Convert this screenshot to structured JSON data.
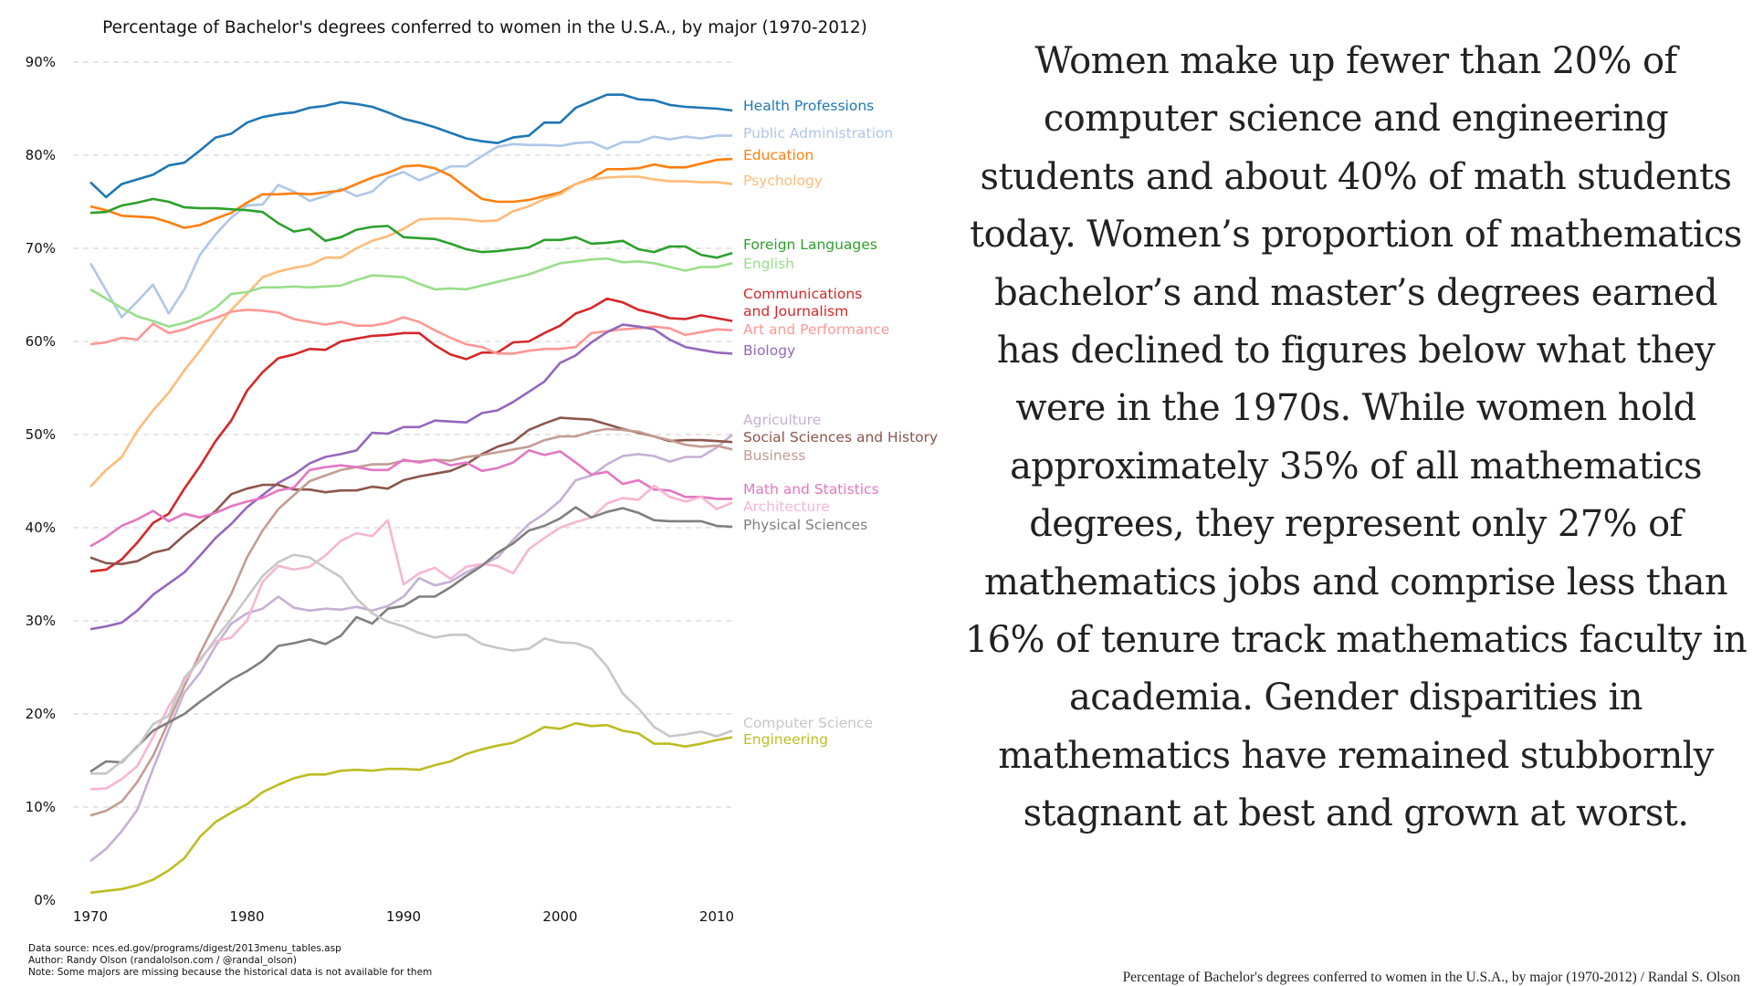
{
  "essay": {
    "text": "Women make up fewer than 20% of computer science and engineering students and about 40% of math students today. Women’s proportion of mathematics bachelor’s and master’s degrees earned has declined to figures below what they were in the 1970s. While women hold approximately 35% of all mathematics degrees, they represent only 27% of mathematics jobs and comprise less than 16% of tenure track mathematics faculty in academia. Gender disparities in mathematics have remained stubbornly stagnant at best and grown at worst."
  },
  "credit": "Percentage of Bachelor's degrees conferred to women in the U.S.A., by major (1970-2012) / Randal S. Olson",
  "footnotes": [
    "Data source: nces.ed.gov/programs/digest/2013menu_tables.asp",
    "Author: Randy Olson (randalolson.com / @randal_olson)",
    "Note: Some majors are missing because the historical data is not available for them"
  ],
  "chart_data": {
    "type": "line",
    "title": "Percentage of Bachelor's degrees conferred to women in the U.S.A., by major (1970-2012)",
    "xlabel": "",
    "ylabel": "",
    "xlim": [
      1970,
      2011
    ],
    "ylim": [
      0,
      90
    ],
    "grid": "horizontal dashed",
    "legend": "inline labels at right end of lines",
    "x_ticks": [
      "1970",
      "1980",
      "1990",
      "2000",
      "2010"
    ],
    "x_tick_values": [
      1970,
      1980,
      1990,
      2000,
      2010
    ],
    "y_ticks": [
      "0%",
      "10%",
      "20%",
      "30%",
      "40%",
      "50%",
      "60%",
      "70%",
      "80%",
      "90%"
    ],
    "y_tick_values": [
      0,
      10,
      20,
      30,
      40,
      50,
      60,
      70,
      80,
      90
    ],
    "x": [
      1970,
      1971,
      1972,
      1973,
      1974,
      1975,
      1976,
      1977,
      1978,
      1979,
      1980,
      1981,
      1982,
      1983,
      1984,
      1985,
      1986,
      1987,
      1988,
      1989,
      1990,
      1991,
      1992,
      1993,
      1994,
      1995,
      1996,
      1997,
      1998,
      1999,
      2000,
      2001,
      2002,
      2003,
      2004,
      2005,
      2006,
      2007,
      2008,
      2009,
      2010,
      2011
    ],
    "series": [
      {
        "name": "Health Professions",
        "label": "Health Professions",
        "color": "#1f77b4",
        "label_value": 85.0,
        "values": [
          77.1,
          75.5,
          76.9,
          77.4,
          77.9,
          78.9,
          79.2,
          80.5,
          81.9,
          82.3,
          83.5,
          84.1,
          84.4,
          84.6,
          85.1,
          85.3,
          85.7,
          85.5,
          85.2,
          84.6,
          83.9,
          83.5,
          83.0,
          82.4,
          81.8,
          81.5,
          81.3,
          81.9,
          82.1,
          83.5,
          83.5,
          85.1,
          85.8,
          86.5,
          86.5,
          86.0,
          85.9,
          85.4,
          85.2,
          85.1,
          85.0,
          84.8
        ]
      },
      {
        "name": "Public Administration",
        "label": "Public Administration",
        "color": "#aec7e8",
        "label_value": 82.1,
        "values": [
          68.4,
          65.5,
          62.6,
          64.3,
          66.1,
          63.0,
          65.6,
          69.3,
          71.5,
          73.3,
          74.6,
          74.7,
          76.8,
          76.1,
          75.1,
          75.6,
          76.4,
          75.6,
          76.1,
          77.6,
          78.2,
          77.3,
          78.0,
          78.8,
          78.8,
          79.9,
          80.9,
          81.2,
          81.1,
          81.1,
          81.0,
          81.3,
          81.4,
          80.7,
          81.4,
          81.4,
          82.0,
          81.7,
          82.0,
          81.8,
          82.1,
          82.1
        ]
      },
      {
        "name": "Education",
        "label": "Education",
        "color": "#ff7f0e",
        "label_value": 79.4,
        "values": [
          74.5,
          74.1,
          73.5,
          73.4,
          73.3,
          72.8,
          72.2,
          72.5,
          73.2,
          73.8,
          74.9,
          75.8,
          75.8,
          75.9,
          75.8,
          76.0,
          76.2,
          76.9,
          77.6,
          78.1,
          78.8,
          78.9,
          78.6,
          77.8,
          76.5,
          75.3,
          75.0,
          75.0,
          75.2,
          75.6,
          76.0,
          76.9,
          77.5,
          78.5,
          78.5,
          78.6,
          79.0,
          78.7,
          78.7,
          79.1,
          79.5,
          79.6
        ]
      },
      {
        "name": "Psychology",
        "label": "Psychology",
        "color": "#ffbb78",
        "label_value": 76.7,
        "values": [
          44.4,
          46.2,
          47.6,
          50.4,
          52.6,
          54.5,
          56.9,
          59.0,
          61.3,
          63.4,
          65.1,
          66.9,
          67.5,
          67.9,
          68.2,
          69.0,
          69.0,
          70.0,
          70.8,
          71.3,
          72.1,
          73.1,
          73.2,
          73.2,
          73.1,
          72.9,
          73.0,
          74.0,
          74.5,
          75.3,
          75.8,
          76.9,
          77.4,
          77.6,
          77.7,
          77.7,
          77.4,
          77.2,
          77.2,
          77.1,
          77.1,
          76.9
        ]
      },
      {
        "name": "Foreign Languages",
        "label": "Foreign Languages",
        "color": "#2ca02c",
        "label_value": 69.9,
        "values": [
          73.8,
          73.9,
          74.6,
          74.9,
          75.3,
          75.0,
          74.4,
          74.3,
          74.3,
          74.2,
          74.1,
          73.9,
          72.7,
          71.8,
          72.1,
          70.8,
          71.2,
          72.0,
          72.3,
          72.4,
          71.2,
          71.1,
          71.0,
          70.5,
          69.9,
          69.6,
          69.7,
          69.9,
          70.1,
          70.9,
          70.9,
          71.2,
          70.5,
          70.6,
          70.8,
          69.9,
          69.6,
          70.2,
          70.2,
          69.3,
          69.0,
          69.5
        ]
      },
      {
        "name": "English",
        "label": "English",
        "color": "#98df8a",
        "label_value": 68.3,
        "values": [
          65.6,
          64.6,
          63.6,
          62.7,
          62.2,
          61.6,
          62.0,
          62.6,
          63.6,
          65.1,
          65.3,
          65.8,
          65.8,
          65.9,
          65.8,
          65.9,
          66.0,
          66.6,
          67.1,
          67.0,
          66.9,
          66.2,
          65.6,
          65.7,
          65.6,
          66.0,
          66.4,
          66.8,
          67.2,
          67.8,
          68.4,
          68.6,
          68.8,
          68.9,
          68.5,
          68.6,
          68.4,
          68.0,
          67.6,
          68.0,
          68.0,
          68.4
        ]
      },
      {
        "name": "Communications and Journalism",
        "label": "Communications\nand Journalism",
        "color": "#d62728",
        "label_value": 62.9,
        "values": [
          35.3,
          35.5,
          36.6,
          38.4,
          40.5,
          41.5,
          44.2,
          46.6,
          49.3,
          51.5,
          54.7,
          56.7,
          58.2,
          58.6,
          59.2,
          59.1,
          60.0,
          60.3,
          60.6,
          60.7,
          60.9,
          60.9,
          59.6,
          58.6,
          58.1,
          58.8,
          58.8,
          59.9,
          60.0,
          60.9,
          61.7,
          63.0,
          63.6,
          64.6,
          64.2,
          63.4,
          63.0,
          62.5,
          62.4,
          62.8,
          62.5,
          62.2
        ]
      },
      {
        "name": "Art and Performance",
        "label": "Art and Performance",
        "color": "#ff9896",
        "label_value": 60.8,
        "values": [
          59.7,
          59.9,
          60.4,
          60.2,
          61.9,
          60.9,
          61.3,
          62.0,
          62.5,
          63.2,
          63.4,
          63.3,
          63.1,
          62.4,
          62.1,
          61.8,
          62.1,
          61.7,
          61.7,
          62.0,
          62.6,
          62.1,
          61.2,
          60.4,
          59.7,
          59.4,
          58.7,
          58.7,
          59.0,
          59.2,
          59.2,
          59.4,
          60.9,
          61.1,
          61.3,
          61.4,
          61.6,
          61.4,
          60.7,
          61.0,
          61.3,
          61.2
        ]
      },
      {
        "name": "Biology",
        "label": "Biology",
        "color": "#9467bd",
        "label_value": 58.7,
        "values": [
          29.1,
          29.4,
          29.8,
          31.1,
          32.8,
          34.0,
          35.2,
          37.0,
          38.9,
          40.4,
          42.2,
          43.5,
          44.8,
          45.7,
          46.9,
          47.6,
          47.9,
          48.3,
          50.2,
          50.1,
          50.8,
          50.8,
          51.5,
          51.4,
          51.3,
          52.3,
          52.6,
          53.5,
          54.6,
          55.7,
          57.7,
          58.5,
          59.9,
          61.0,
          61.8,
          61.6,
          61.3,
          60.2,
          59.4,
          59.1,
          58.8,
          58.7
        ]
      },
      {
        "name": "Agriculture",
        "label": "Agriculture",
        "color": "#c5b0d5",
        "label_value": 51.5,
        "values": [
          4.2,
          5.5,
          7.4,
          9.7,
          14.1,
          18.3,
          22.3,
          24.4,
          27.3,
          29.7,
          30.8,
          31.3,
          32.6,
          31.4,
          31.1,
          31.3,
          31.2,
          31.5,
          31.1,
          31.6,
          32.6,
          34.6,
          33.8,
          34.2,
          35.2,
          36.0,
          36.8,
          38.7,
          40.4,
          41.5,
          42.9,
          45.1,
          45.6,
          46.8,
          47.7,
          47.9,
          47.7,
          47.1,
          47.6,
          47.6,
          48.6,
          50.0
        ]
      },
      {
        "name": "Social Sciences and History",
        "label": "Social Sciences and History",
        "color": "#8c564b",
        "label_value": 49.3,
        "values": [
          36.8,
          36.2,
          36.1,
          36.4,
          37.3,
          37.7,
          39.2,
          40.5,
          41.8,
          43.6,
          44.2,
          44.6,
          44.6,
          44.1,
          44.1,
          43.8,
          44.0,
          44.0,
          44.4,
          44.2,
          45.1,
          45.5,
          45.8,
          46.1,
          46.8,
          47.9,
          48.7,
          49.2,
          50.5,
          51.2,
          51.8,
          51.7,
          51.6,
          51.1,
          50.6,
          50.2,
          49.8,
          49.3,
          49.4,
          49.4,
          49.3,
          49.2
        ]
      },
      {
        "name": "Business",
        "label": "Business",
        "color": "#c49c94",
        "label_value": 48.4,
        "values": [
          9.1,
          9.6,
          10.6,
          12.7,
          15.5,
          19.2,
          23.0,
          26.5,
          29.8,
          32.9,
          36.8,
          39.7,
          42.0,
          43.5,
          45.0,
          45.6,
          46.2,
          46.5,
          46.8,
          46.8,
          47.2,
          47.1,
          47.3,
          47.2,
          47.6,
          47.8,
          48.1,
          48.4,
          48.7,
          49.4,
          49.8,
          49.8,
          50.3,
          50.6,
          50.5,
          50.3,
          49.8,
          49.4,
          48.9,
          48.7,
          48.8,
          48.4
        ]
      },
      {
        "name": "Math and Statistics",
        "label": "Math and Statistics",
        "color": "#e377c2",
        "label_value": 43.2,
        "values": [
          38.0,
          39.0,
          40.2,
          40.9,
          41.8,
          40.7,
          41.5,
          41.1,
          41.6,
          42.3,
          42.8,
          43.2,
          44.0,
          44.3,
          46.2,
          46.5,
          46.7,
          46.5,
          46.2,
          46.2,
          47.3,
          47.0,
          47.3,
          46.7,
          47.0,
          46.1,
          46.4,
          47.0,
          48.3,
          47.8,
          48.2,
          47.0,
          45.7,
          46.0,
          44.7,
          45.1,
          44.1,
          44.0,
          43.3,
          43.3,
          43.1,
          43.1
        ]
      },
      {
        "name": "Architecture",
        "label": "Architecture",
        "color": "#f7b6d2",
        "label_value": 42.0,
        "values": [
          11.9,
          12.0,
          13.0,
          14.4,
          17.5,
          20.8,
          23.5,
          25.9,
          27.8,
          28.2,
          30.0,
          34.2,
          35.9,
          35.5,
          35.8,
          37.0,
          38.6,
          39.4,
          39.1,
          40.8,
          33.9,
          35.1,
          35.7,
          34.5,
          35.8,
          36.1,
          35.9,
          35.1,
          37.7,
          38.9,
          40.0,
          40.6,
          41.1,
          42.6,
          43.2,
          43.0,
          44.5,
          43.3,
          42.8,
          43.3,
          42.0,
          42.7
        ]
      },
      {
        "name": "Physical Sciences",
        "label": "Physical Sciences",
        "color": "#7f7f7f",
        "label_value": 40.2,
        "values": [
          13.8,
          14.9,
          14.8,
          16.5,
          18.2,
          19.1,
          20.0,
          21.3,
          22.5,
          23.7,
          24.6,
          25.7,
          27.3,
          27.6,
          28.0,
          27.5,
          28.4,
          30.4,
          29.7,
          31.3,
          31.6,
          32.6,
          32.6,
          33.6,
          34.8,
          35.9,
          37.3,
          38.3,
          39.7,
          40.2,
          41.0,
          42.2,
          41.1,
          41.7,
          42.1,
          41.6,
          40.8,
          40.7,
          40.7,
          40.7,
          40.2,
          40.1
        ]
      },
      {
        "name": "Computer Science",
        "label": "Computer Science",
        "color": "#c7c7c7",
        "label_value": 19.6,
        "values": [
          13.6,
          13.6,
          14.9,
          16.4,
          18.9,
          19.8,
          23.9,
          25.7,
          28.1,
          30.2,
          32.5,
          34.8,
          36.3,
          37.1,
          36.8,
          35.7,
          34.7,
          32.4,
          30.8,
          29.9,
          29.4,
          28.7,
          28.2,
          28.5,
          28.5,
          27.5,
          27.1,
          26.8,
          27.0,
          28.1,
          27.7,
          27.6,
          27.0,
          25.1,
          22.2,
          20.6,
          18.6,
          17.6,
          17.8,
          18.1,
          17.6,
          18.2
        ]
      },
      {
        "name": "Engineering",
        "label": "Engineering",
        "color": "#bcbd22",
        "label_value": 17.6,
        "values": [
          0.8,
          1.0,
          1.2,
          1.6,
          2.2,
          3.2,
          4.5,
          6.8,
          8.4,
          9.4,
          10.3,
          11.6,
          12.4,
          13.1,
          13.5,
          13.5,
          13.9,
          14.0,
          13.9,
          14.1,
          14.1,
          14.0,
          14.5,
          14.9,
          15.7,
          16.2,
          16.6,
          16.9,
          17.7,
          18.6,
          18.4,
          19.0,
          18.7,
          18.8,
          18.2,
          17.9,
          16.8,
          16.8,
          16.5,
          16.8,
          17.2,
          17.5
        ]
      }
    ]
  }
}
